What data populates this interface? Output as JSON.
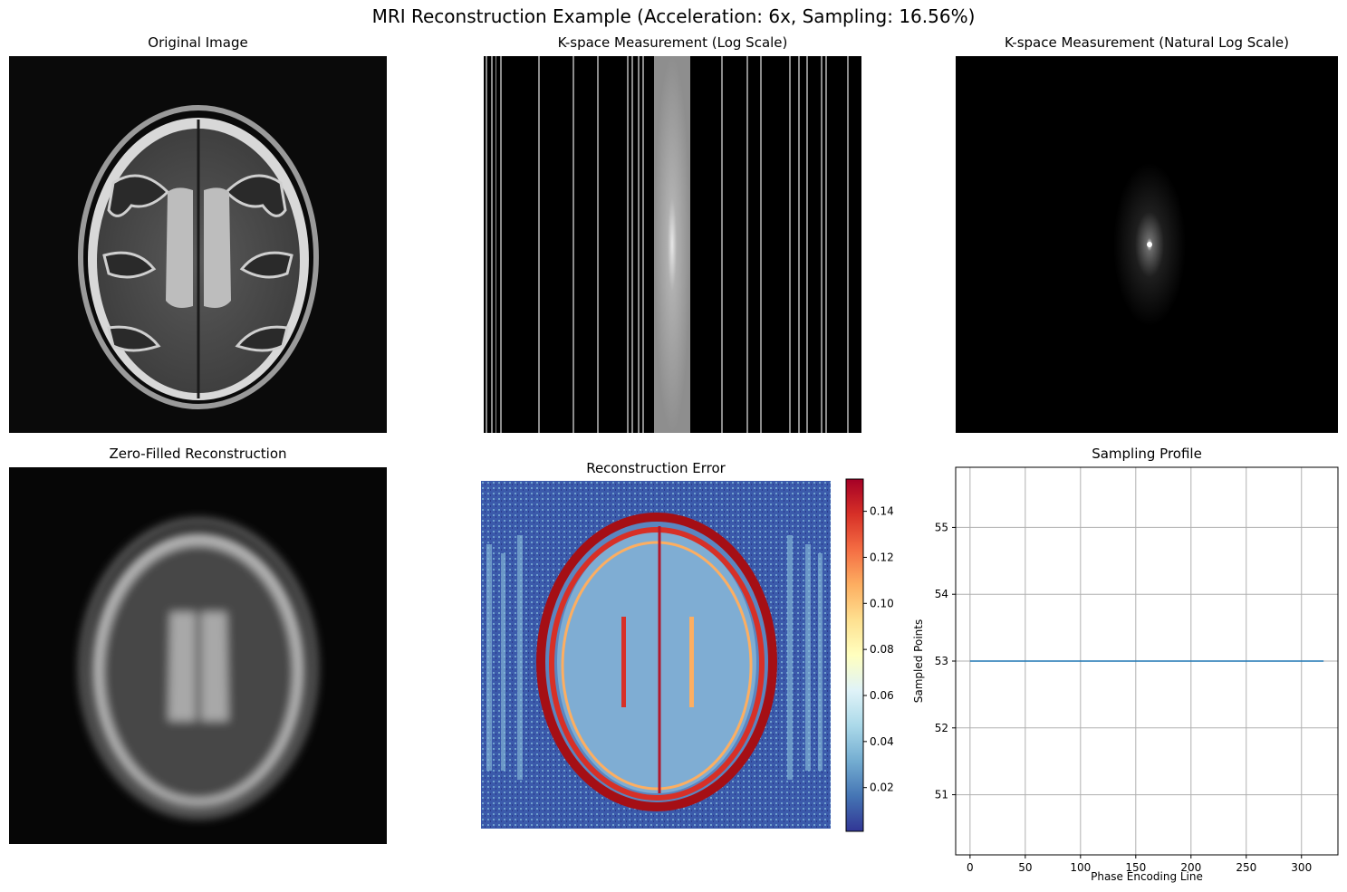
{
  "suptitle": "MRI Reconstruction Example (Acceleration: 6x, Sampling: 16.56%)",
  "panels": {
    "original": {
      "title": "Original Image"
    },
    "kspace_log": {
      "title": "K-space Measurement (Log Scale)"
    },
    "kspace_ln": {
      "title": "K-space Measurement (Natural Log Scale)"
    },
    "zero_filled": {
      "title": "Zero-Filled Reconstruction"
    },
    "error": {
      "title": "Reconstruction Error"
    },
    "profile": {
      "title": "Sampling Profile"
    }
  },
  "chart_data": [
    {
      "type": "line",
      "title": "Sampling Profile",
      "xlabel": "Phase Encoding Line",
      "ylabel": "Sampled Points",
      "xlim": [
        -13,
        333
      ],
      "ylim": [
        50.1,
        55.9
      ],
      "xticks": [
        0,
        50,
        100,
        150,
        200,
        250,
        300
      ],
      "yticks": [
        51,
        52,
        53,
        54,
        55
      ],
      "grid": true,
      "series": [
        {
          "x": [
            0,
            320
          ],
          "y": [
            53,
            53
          ],
          "color": "#1f77b4"
        }
      ]
    },
    {
      "type": "heatmap",
      "title": "Reconstruction Error",
      "colormap": "RdYlBu_r",
      "colorbar_ticks": [
        "0.02",
        "0.04",
        "0.06",
        "0.08",
        "0.10",
        "0.12",
        "0.14"
      ],
      "colorbar_range": [
        0.001,
        0.154
      ]
    }
  ]
}
